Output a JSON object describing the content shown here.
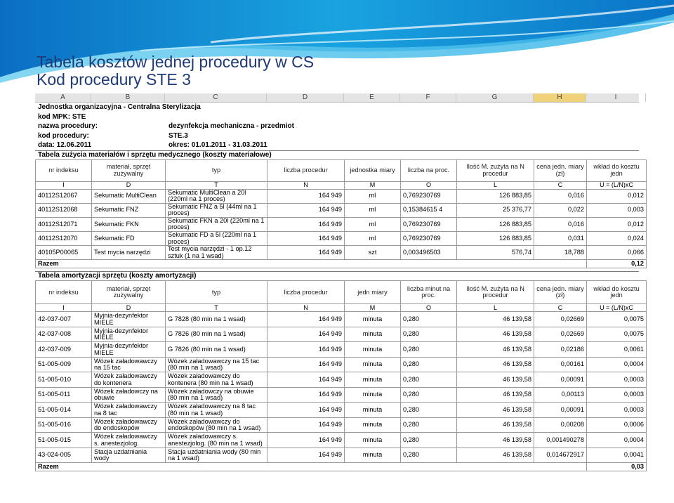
{
  "slide": {
    "title_line1": "Tabela kosztów jednej procedury w CS",
    "title_line2": "Kod procedury STE 3",
    "accent_color": "#1aa3e0"
  },
  "sheet": {
    "columns": [
      "A",
      "B",
      "C",
      "D",
      "E",
      "F",
      "G",
      "H",
      "I"
    ],
    "selected_column": "H",
    "info": {
      "unit": "Jednostka organizacyjna - Centralna Sterylizacja",
      "mpk": "kod MPK: STE",
      "name_label": "nazwa procedury:",
      "name_value": "dezynfekcja mechaniczna - przedmiot",
      "code_label": "kod procedury:",
      "code_value": "STE.3",
      "date_label": "data: 12.06.2011",
      "period": "okres: 01.01.2011 - 31.03.2011"
    },
    "table1": {
      "title": "Tabela zużycia materiałów i sprzętu medycznego (koszty materiałowe)",
      "headers": [
        "nr indeksu",
        "materiał, sprzęt zużywalny",
        "typ",
        "liczba procedur",
        "jednostka miary",
        "liczba na proc.",
        "Ilość M. zużyta na N procedur",
        "cena jedn. miary (zł)",
        "wkład do kosztu jedn"
      ],
      "codes": [
        "I",
        "D",
        "T",
        "N",
        "M",
        "O",
        "L",
        "C",
        "U = (L/N)xC"
      ],
      "rows": [
        [
          "40112S12067",
          "Sekumatic MultiClean",
          "Sekumatic MultiClean a 20l (220ml na 1 proces)",
          "164 949",
          "ml",
          "0,769230769",
          "126 883,85",
          "0,016",
          "0,012"
        ],
        [
          "40112S12068",
          "Sekumatic FNZ",
          "Sekumatic FNZ a 5l (44ml na 1 proces)",
          "164 949",
          "ml",
          "0,15384615 4",
          "25 376,77",
          "0,022",
          "0,003"
        ],
        [
          "40112S12071",
          "Sekumatic FKN",
          "Sekumatic FKN a 20l (220ml na 1 proces)",
          "164 949",
          "ml",
          "0,769230769",
          "126 883,85",
          "0,016",
          "0,012"
        ],
        [
          "40112S12070",
          "Sekumatic FD",
          "Sekumatic FD a 5l (220ml na 1 proces)",
          "164 949",
          "ml",
          "0,769230769",
          "126 883,85",
          "0,031",
          "0,024"
        ],
        [
          "40105P00065",
          "Test mycia narzędzi",
          "Test mycia narzędzi - 1 op.12 sztuk (1 na 1 wsad)",
          "164 949",
          "szt",
          "0,003496503",
          "576,74",
          "18,788",
          "0,066"
        ]
      ],
      "total_label": "Razem",
      "total_value": "0,12"
    },
    "table2": {
      "title": "Tabela amortyzacji sprzętu (koszty amortyzacji)",
      "headers": [
        "nr indeksu",
        "materiał, sprzęt zużywalny",
        "typ",
        "liczba procedur",
        "jedn miary",
        "liczba minut na proc.",
        "Ilość M. zużyta na N procedur",
        "cena jedn. miary (zł)",
        "wkład do kosztu jedn"
      ],
      "codes": [
        "I",
        "D",
        "T",
        "N",
        "M",
        "O",
        "L",
        "C",
        "U = (L/N)xC"
      ],
      "rows": [
        [
          "42-037-007",
          "Myjnia-dezynfektor MIELE",
          "G 7828 (80 min na 1 wsad)",
          "164 949",
          "minuta",
          "0,280",
          "46 139,58",
          "0,02669",
          "0,0075"
        ],
        [
          "42-037-008",
          "Myjnia-dezynfektor MIELE",
          "G 7826 (80 min na 1 wsad)",
          "164 949",
          "minuta",
          "0,280",
          "46 139,58",
          "0,02669",
          "0,0075"
        ],
        [
          "42-037-009",
          "Myjnia-dezynfektor MIELE",
          "G 7826 (80 min na 1 wsad)",
          "164 949",
          "minuta",
          "0,280",
          "46 139,58",
          "0,02186",
          "0,0061"
        ],
        [
          "51-005-009",
          "Wózek załadowawczy na 15 tac",
          "Wózek załadowawczy na 15 tac (80 min na 1 wsad)",
          "164 949",
          "minuta",
          "0,280",
          "46 139,58",
          "0,00161",
          "0,0004"
        ],
        [
          "51-005-010",
          "Wózek załadowawczy do kontenera",
          "Wózek załadowawczy do kontenera (80 min na 1 wsad)",
          "164 949",
          "minuta",
          "0,280",
          "46 139,58",
          "0,00091",
          "0,0003"
        ],
        [
          "51-005-011",
          "Wózek załadowczy na obuwie",
          "Wózek załadowczy na obuwie (80 min na 1 wsad)",
          "164 949",
          "minuta",
          "0,280",
          "46 139,58",
          "0,00113",
          "0,0003"
        ],
        [
          "51-005-014",
          "Wózek załadowawczy na 8 tac",
          "Wózek załadowawczy na 8 tac (80 min na 1 wsad)",
          "164 949",
          "minuta",
          "0,280",
          "46 139,58",
          "0,00091",
          "0,0003"
        ],
        [
          "51-005-016",
          "Wózek załadowawczy do endoskopów",
          "Wózek załadowawczy do endoskopów (80 min na 1 wsad)",
          "164 949",
          "minuta",
          "0,280",
          "46 139,58",
          "0,00208",
          "0,0006"
        ],
        [
          "51-005-015",
          "Wózek załadowawczy s. anestezjolog.",
          "Wózek załadowawczy s. anestezjolog. (80 min na 1 wsad)",
          "164 949",
          "minuta",
          "0,280",
          "46 139,58",
          "0,001490278",
          "0,0004"
        ],
        [
          "43-024-005",
          "Stacja uzdatniania wody",
          "Stacja uzdatniania wody (80 min na 1 wsad)",
          "164 949",
          "minuta",
          "0,280",
          "46 139,58",
          "0,014672917",
          "0,0041"
        ]
      ],
      "total_label": "Razem",
      "total_value": "0,03"
    }
  }
}
